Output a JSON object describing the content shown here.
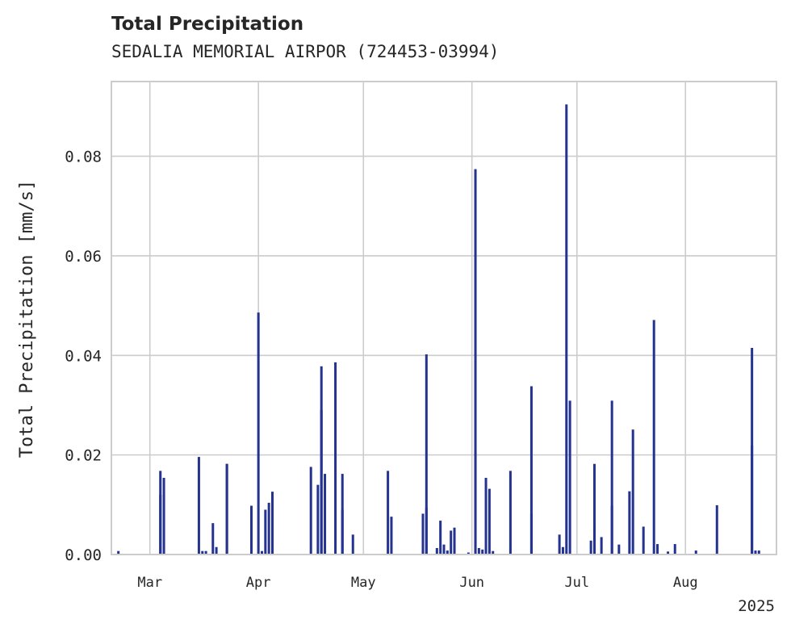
{
  "chart_data": {
    "type": "bar",
    "title": "Total Precipitation",
    "subtitle": "SEDALIA MEMORIAL AIRPOR (724453-03994)",
    "xlabel": "",
    "ylabel": "Total Precipitation [mm/s]",
    "year_label": "2025",
    "xlim": [
      "2025-02-18",
      "2025-08-27"
    ],
    "ylim": [
      0,
      0.095
    ],
    "yticks": [
      0.0,
      0.02,
      0.04,
      0.06,
      0.08
    ],
    "ytick_labels": [
      "0.00",
      "0.02",
      "0.04",
      "0.06",
      "0.08"
    ],
    "xticks": [
      "2025-03-01",
      "2025-04-01",
      "2025-05-01",
      "2025-06-01",
      "2025-07-01",
      "2025-08-01"
    ],
    "xtick_labels": [
      "Mar",
      "Apr",
      "May",
      "Jun",
      "Jul",
      "Aug"
    ],
    "grid": true,
    "colors": {
      "bar": "#24338f",
      "grid": "#cccccc",
      "axes": "#cccccc"
    },
    "series": [
      {
        "x": [
          "2025-02-20",
          "2025-03-04",
          "2025-03-04",
          "2025-03-05",
          "2025-03-15",
          "2025-03-16",
          "2025-03-17",
          "2025-03-19",
          "2025-03-20",
          "2025-03-23",
          "2025-03-23",
          "2025-03-30",
          "2025-04-01",
          "2025-04-02",
          "2025-04-03",
          "2025-04-04",
          "2025-04-05",
          "2025-04-05",
          "2025-04-16",
          "2025-04-18",
          "2025-04-19",
          "2025-04-19",
          "2025-04-20",
          "2025-04-23",
          "2025-04-25",
          "2025-04-25",
          "2025-04-28",
          "2025-05-08",
          "2025-05-09",
          "2025-05-18",
          "2025-05-19",
          "2025-05-19",
          "2025-05-22",
          "2025-05-23",
          "2025-05-24",
          "2025-05-25",
          "2025-05-26",
          "2025-05-27",
          "2025-05-31",
          "2025-06-02",
          "2025-06-02",
          "2025-06-03",
          "2025-06-04",
          "2025-06-05",
          "2025-06-06",
          "2025-06-07",
          "2025-06-12",
          "2025-06-18",
          "2025-06-18",
          "2025-06-26",
          "2025-06-27",
          "2025-06-28",
          "2025-06-29",
          "2025-07-05",
          "2025-07-06",
          "2025-07-06",
          "2025-07-08",
          "2025-07-11",
          "2025-07-11",
          "2025-07-13",
          "2025-07-16",
          "2025-07-17",
          "2025-07-20",
          "2025-07-23",
          "2025-07-24",
          "2025-07-27",
          "2025-07-29",
          "2025-08-04",
          "2025-08-10",
          "2025-08-20",
          "2025-08-20",
          "2025-08-21",
          "2025-08-22"
        ],
        "values": [
          0.0007,
          0.0168,
          0.012,
          0.0154,
          0.0196,
          0.0007,
          0.0007,
          0.0063,
          0.0015,
          0.0182,
          0.0182,
          0.0098,
          0.0486,
          0.0007,
          0.009,
          0.0104,
          0.0126,
          0.0126,
          0.0176,
          0.014,
          0.0378,
          0.029,
          0.0162,
          0.0386,
          0.009,
          0.0162,
          0.004,
          0.0168,
          0.0076,
          0.0082,
          0.0094,
          0.0402,
          0.0013,
          0.0068,
          0.002,
          0.0008,
          0.0048,
          0.0054,
          0.0004,
          0.0774,
          0.021,
          0.0013,
          0.001,
          0.0154,
          0.0132,
          0.0007,
          0.0168,
          0.0082,
          0.0338,
          0.004,
          0.0015,
          0.0904,
          0.0309,
          0.0028,
          0.0182,
          0.0055,
          0.0035,
          0.0309,
          0.0098,
          0.002,
          0.0127,
          0.0251,
          0.0056,
          0.0471,
          0.0021,
          0.0006,
          0.0021,
          0.0008,
          0.0099,
          0.0219,
          0.0415,
          0.0008,
          0.0008
        ]
      }
    ]
  }
}
